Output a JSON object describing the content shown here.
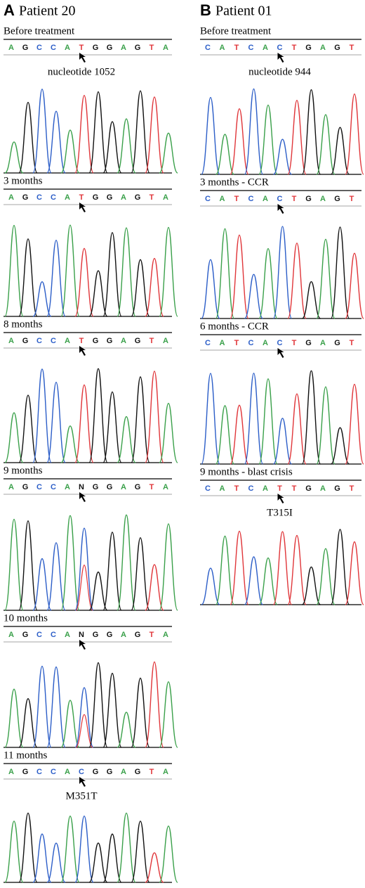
{
  "panels": [
    {
      "letter": "A",
      "title": "Patient 20",
      "tracks": [
        {
          "label": "Before treatment",
          "bases": [
            "A",
            "G",
            "C",
            "C",
            "A",
            "T",
            "G",
            "G",
            "A",
            "G",
            "T",
            "A"
          ],
          "annotation": "nucleotide 1052"
        },
        {
          "label": "3 months",
          "bases": [
            "A",
            "G",
            "C",
            "C",
            "A",
            "T",
            "G",
            "G",
            "A",
            "G",
            "T",
            "A"
          ]
        },
        {
          "label": "8 months",
          "bases": [
            "A",
            "G",
            "C",
            "C",
            "A",
            "T",
            "G",
            "G",
            "A",
            "G",
            "T",
            "A"
          ]
        },
        {
          "label": "9 months",
          "bases": [
            "A",
            "G",
            "C",
            "C",
            "A",
            "N",
            "G",
            "G",
            "A",
            "G",
            "T",
            "A"
          ]
        },
        {
          "label": "10 months",
          "bases": [
            "A",
            "G",
            "C",
            "C",
            "A",
            "N",
            "G",
            "G",
            "A",
            "G",
            "T",
            "A"
          ]
        },
        {
          "label": "11 months",
          "bases": [
            "A",
            "G",
            "C",
            "C",
            "A",
            "C",
            "G",
            "G",
            "A",
            "G",
            "T",
            "A"
          ],
          "annotation": "M351T"
        }
      ]
    },
    {
      "letter": "B",
      "title": "Patient 01",
      "tracks": [
        {
          "label": "Before treatment",
          "bases": [
            "C",
            "A",
            "T",
            "C",
            "A",
            "C",
            "T",
            "G",
            "A",
            "G",
            "T"
          ],
          "annotation": "nucleotide 944"
        },
        {
          "label": "3 months - CCR",
          "bases": [
            "C",
            "A",
            "T",
            "C",
            "A",
            "C",
            "T",
            "G",
            "A",
            "G",
            "T"
          ]
        },
        {
          "label": "6 months - CCR",
          "bases": [
            "C",
            "A",
            "T",
            "C",
            "A",
            "C",
            "T",
            "G",
            "A",
            "G",
            "T"
          ]
        },
        {
          "label": "9 months - blast crisis",
          "bases": [
            "C",
            "A",
            "T",
            "C",
            "A",
            "T",
            "T",
            "G",
            "A",
            "G",
            "T"
          ],
          "annotation": "T315I"
        }
      ]
    }
  ]
}
